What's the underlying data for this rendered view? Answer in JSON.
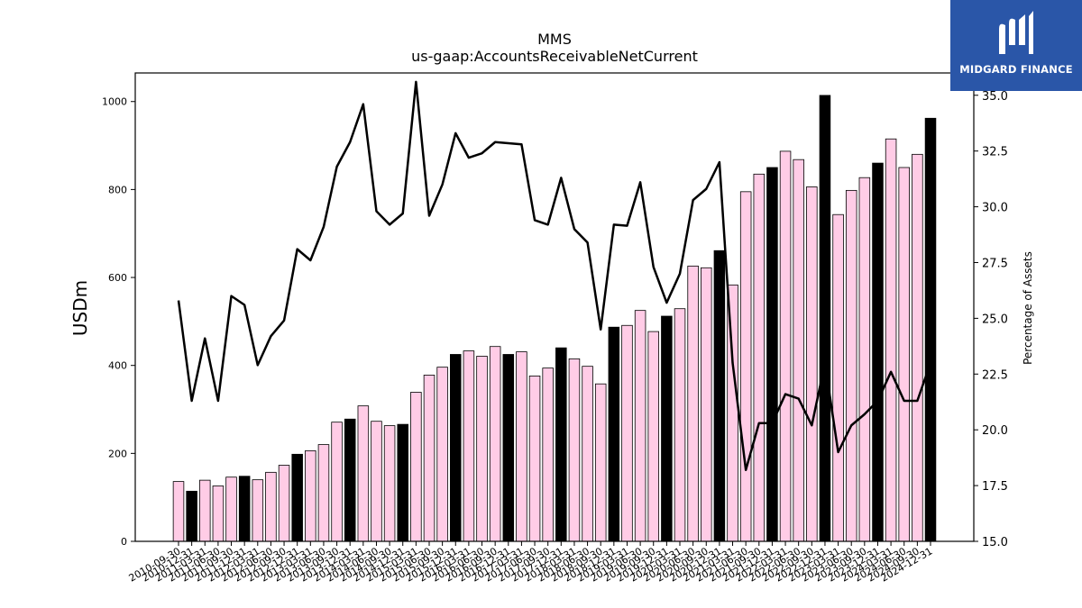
{
  "chart_data": {
    "type": "bar",
    "title": "MMS",
    "subtitle": "us-gaap:AccountsReceivableNetCurrent",
    "ylabel": "USDm",
    "y2label": "Percentage of Assets",
    "ylim": [
      0,
      1065
    ],
    "y2lim": [
      15.0,
      36.0
    ],
    "yticks": [
      0,
      200,
      400,
      600,
      800,
      1000
    ],
    "y2ticks": [
      "15.0",
      "17.5",
      "20.0",
      "22.5",
      "25.0",
      "27.5",
      "30.0",
      "32.5",
      "35.0"
    ],
    "colors": {
      "fy_bar": "#000000",
      "quarter_bar": "#ffcce6",
      "line": "#000000"
    },
    "categories": [
      "2010-09-30",
      "2010-12-31",
      "2011-03-31",
      "2011-06-30",
      "2011-09-30",
      "2011-12-31",
      "2012-03-31",
      "2012-06-30",
      "2012-09-30",
      "2012-12-31",
      "2013-03-31",
      "2013-06-30",
      "2013-09-30",
      "2013-12-31",
      "2014-03-31",
      "2014-06-30",
      "2014-09-30",
      "2014-12-31",
      "2015-03-31",
      "2015-06-30",
      "2015-09-30",
      "2015-12-31",
      "2016-03-31",
      "2016-06-30",
      "2016-09-30",
      "2016-12-31",
      "2017-03-31",
      "2017-06-30",
      "2017-09-30",
      "2017-12-31",
      "2018-03-31",
      "2018-06-30",
      "2018-09-30",
      "2018-12-31",
      "2019-03-31",
      "2019-06-30",
      "2019-09-30",
      "2019-12-31",
      "2020-03-31",
      "2020-06-30",
      "2020-09-30",
      "2020-12-31",
      "2021-03-31",
      "2021-06-30",
      "2021-09-30",
      "2021-12-31",
      "2022-03-31",
      "2022-06-30",
      "2022-09-30",
      "2022-12-31",
      "2023-03-31",
      "2023-06-30",
      "2023-09-30",
      "2023-12-31",
      "2024-03-31",
      "2024-06-30",
      "2024-09-30",
      "2024-12-31"
    ],
    "series": [
      {
        "type": "bar",
        "values": [
          136,
          114,
          139,
          126,
          146,
          148,
          140,
          157,
          173,
          198,
          206,
          220,
          271,
          278,
          308,
          273,
          263,
          266,
          339,
          378,
          396,
          425,
          433,
          421,
          443,
          425,
          431,
          376,
          394,
          440,
          415,
          398,
          358,
          487,
          491,
          525,
          477,
          512,
          529,
          626,
          622,
          661,
          583,
          795,
          835,
          850,
          887,
          868,
          806,
          1014,
          743,
          798,
          827,
          860,
          915,
          850,
          880,
          962
        ],
        "fiscal_year_end": [
          false,
          true,
          false,
          false,
          false,
          true,
          false,
          false,
          false,
          true,
          false,
          false,
          false,
          true,
          false,
          false,
          false,
          true,
          false,
          false,
          false,
          true,
          false,
          false,
          false,
          true,
          false,
          false,
          false,
          true,
          false,
          false,
          false,
          true,
          false,
          false,
          false,
          true,
          false,
          false,
          false,
          true,
          false,
          false,
          false,
          true,
          false,
          false,
          false,
          true,
          false,
          false,
          false,
          true,
          false,
          false,
          false,
          true
        ]
      },
      {
        "type": "line",
        "axis": "right",
        "values": [
          25.8,
          21.3,
          24.1,
          21.3,
          26.0,
          25.6,
          22.9,
          24.2,
          24.9,
          28.1,
          27.6,
          29.1,
          31.8,
          32.9,
          34.6,
          29.8,
          29.2,
          29.7,
          35.6,
          29.6,
          31.0,
          33.3,
          32.2,
          32.4,
          32.9,
          32.85,
          32.8,
          29.4,
          29.2,
          31.3,
          29.0,
          28.4,
          24.5,
          29.2,
          29.15,
          31.1,
          27.3,
          25.7,
          27.0,
          30.3,
          30.8,
          32.0,
          23.0,
          18.2,
          20.3,
          20.3,
          21.6,
          21.4,
          20.2,
          23.0,
          19.0,
          20.2,
          20.7,
          21.3,
          22.6,
          21.3,
          21.3,
          23.0
        ]
      }
    ]
  },
  "logo": {
    "text": "MIDGARD FINANCE"
  }
}
